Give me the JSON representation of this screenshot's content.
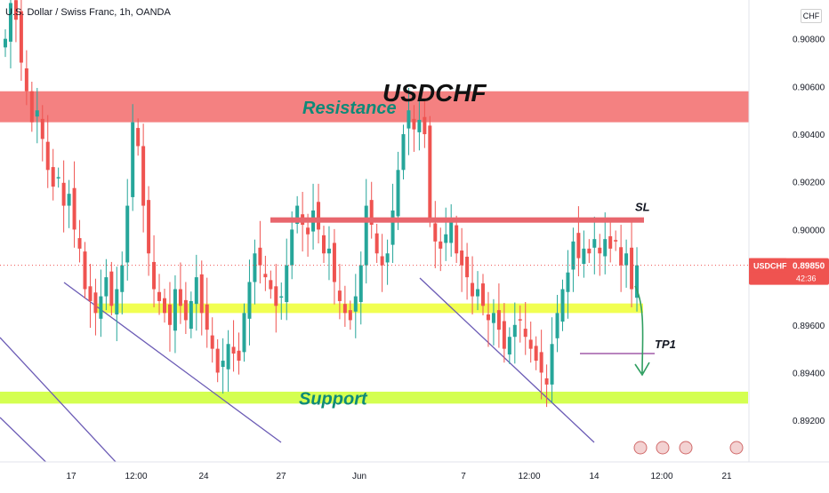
{
  "header": {
    "symbol_desc": "U.S. Dollar / Swiss Franc, 1h, OANDA",
    "currency_label": "CHF"
  },
  "chart_data": {
    "type": "candlestick",
    "title": "USDCHF",
    "symbol": "USDCHF",
    "ylim": [
      0.891,
      0.91
    ],
    "y_ticks": [
      {
        "label": "0.90800",
        "value": 0.908
      },
      {
        "label": "0.90600",
        "value": 0.906
      },
      {
        "label": "0.90400",
        "value": 0.904
      },
      {
        "label": "0.90200",
        "value": 0.902
      },
      {
        "label": "0.90000",
        "value": 0.9
      },
      {
        "label": "0.89600",
        "value": 0.896
      },
      {
        "label": "0.89400",
        "value": 0.894
      },
      {
        "label": "0.89200",
        "value": 0.892
      }
    ],
    "x_ticks": [
      "17",
      "12:00",
      "24",
      "27",
      "Jun",
      "7",
      "12:00",
      "14",
      "12:00",
      "21"
    ],
    "current_price": {
      "label": "USDCHF",
      "value": "0.89850",
      "countdown": "42:36",
      "price": 0.8985
    },
    "zones": [
      {
        "label": "Resistance",
        "from": 0.9045,
        "to": 0.9058,
        "color": "#f26b6b",
        "label_color": "#0e8a78"
      },
      {
        "label": "Support",
        "from": 0.8927,
        "to": 0.8932,
        "color": "#ccff33",
        "label_color": "#0e8a78"
      },
      {
        "label": "",
        "from": 0.8965,
        "to": 0.8969,
        "color": "#eeff33",
        "label_color": ""
      }
    ],
    "levels": [
      {
        "label": "SL",
        "value": 0.9004,
        "color": "#e8666d"
      },
      {
        "label": "TP1",
        "value": 0.8948,
        "color": "#a05ca8"
      }
    ],
    "ohlc_path": [
      0.908,
      0.9095,
      0.9088,
      0.907,
      0.9058,
      0.9045,
      0.905,
      0.9038,
      0.9025,
      0.9018,
      0.9022,
      0.901,
      0.9015,
      0.9,
      0.8992,
      0.8975,
      0.897,
      0.8965,
      0.8972,
      0.898,
      0.8968,
      0.8975,
      0.8985,
      0.901,
      0.9045,
      0.9035,
      0.901,
      0.899,
      0.8975,
      0.897,
      0.8965,
      0.896,
      0.8975,
      0.8968,
      0.8962,
      0.897,
      0.898,
      0.8965,
      0.8958,
      0.895,
      0.894,
      0.8945,
      0.8952,
      0.8948,
      0.8945,
      0.8965,
      0.8978,
      0.899,
      0.8985,
      0.898,
      0.8975,
      0.8968,
      0.8972,
      0.8985,
      0.9,
      0.901,
      0.9002,
      0.8998,
      0.9008,
      0.9,
      0.899,
      0.8992,
      0.8978,
      0.897,
      0.8965,
      0.8962,
      0.8972,
      0.8985,
      0.901,
      0.9002,
      0.899,
      0.8985,
      0.899,
      0.9008,
      0.9025,
      0.904,
      0.905,
      0.9042,
      0.9046,
      0.904,
      0.9005,
      0.8995,
      0.8992,
      0.8998,
      0.9003,
      0.899,
      0.8985,
      0.898,
      0.8972,
      0.8975,
      0.8968,
      0.8962,
      0.8965,
      0.8958,
      0.895,
      0.8955,
      0.896,
      0.8962,
      0.8955,
      0.895,
      0.8945,
      0.894,
      0.8935,
      0.8952,
      0.8965,
      0.8975,
      0.8982,
      0.8995,
      0.8988,
      0.8992,
      0.899,
      0.8996,
      0.899,
      0.8996,
      0.8992,
      0.8995,
      0.8985,
      0.899,
      0.8975,
      0.8985
    ],
    "series": [],
    "trendlines": 4,
    "annotations": [
      "SL",
      "TP1",
      "Resistance",
      "Support"
    ],
    "grid": false,
    "legend": "none",
    "up_color": "#26a69a",
    "down_color": "#ef5350"
  }
}
